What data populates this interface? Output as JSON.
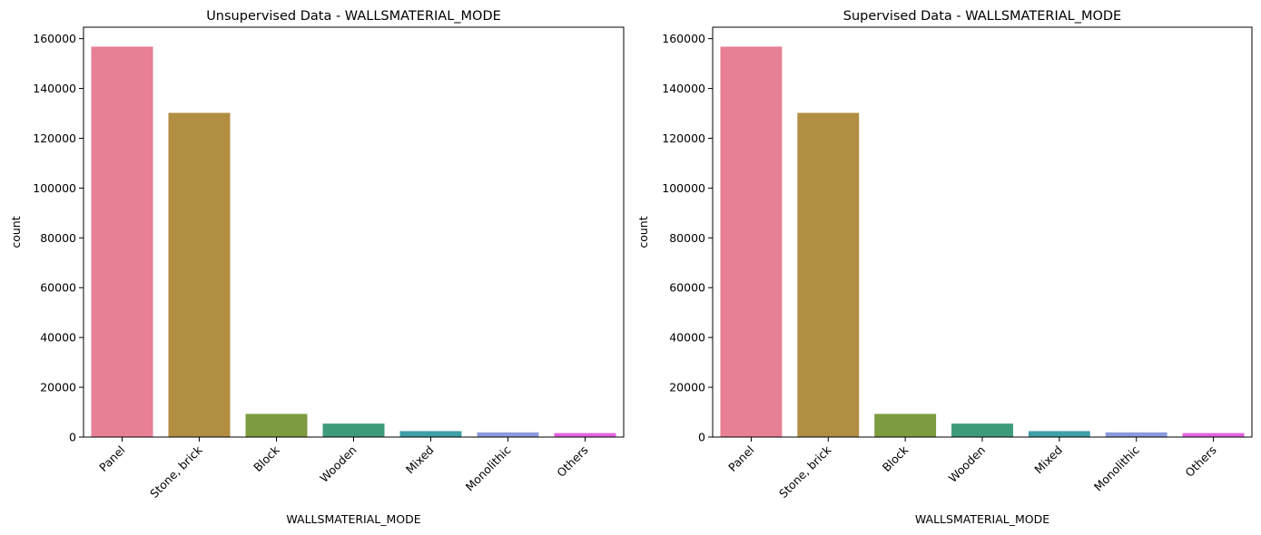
{
  "chart_data": [
    {
      "type": "bar",
      "title": "Unsupervised Data - WALLSMATERIAL_MODE",
      "xlabel": "WALLSMATERIAL_MODE",
      "ylabel": "count",
      "categories": [
        "Panel",
        "Stone, brick",
        "Block",
        "Wooden",
        "Mixed",
        "Monolithic",
        "Others"
      ],
      "values": [
        156800,
        130200,
        9300,
        5400,
        2400,
        1900,
        1600
      ],
      "colors": [
        "#e77f95",
        "#b28e43",
        "#7d9b40",
        "#3d9b79",
        "#40a0a7",
        "#8b9be0",
        "#e363df"
      ],
      "ylim": [
        0,
        164600
      ],
      "yticks": [
        0,
        20000,
        40000,
        60000,
        80000,
        100000,
        120000,
        140000,
        160000
      ],
      "ytick_labels": [
        "0",
        "20000",
        "40000",
        "60000",
        "80000",
        "100000",
        "120000",
        "140000",
        "160000"
      ],
      "grid": false,
      "legend": "none"
    },
    {
      "type": "bar",
      "title": "Supervised Data - WALLSMATERIAL_MODE",
      "xlabel": "WALLSMATERIAL_MODE",
      "ylabel": "count",
      "categories": [
        "Panel",
        "Stone, brick",
        "Block",
        "Wooden",
        "Mixed",
        "Monolithic",
        "Others"
      ],
      "values": [
        156800,
        130200,
        9300,
        5400,
        2400,
        1900,
        1600
      ],
      "colors": [
        "#e77f95",
        "#b28e43",
        "#7d9b40",
        "#3d9b79",
        "#40a0a7",
        "#8b9be0",
        "#e363df"
      ],
      "ylim": [
        0,
        164600
      ],
      "yticks": [
        0,
        20000,
        40000,
        60000,
        80000,
        100000,
        120000,
        140000,
        160000
      ],
      "ytick_labels": [
        "0",
        "20000",
        "40000",
        "60000",
        "80000",
        "100000",
        "120000",
        "140000",
        "160000"
      ],
      "grid": false,
      "legend": "none"
    }
  ]
}
